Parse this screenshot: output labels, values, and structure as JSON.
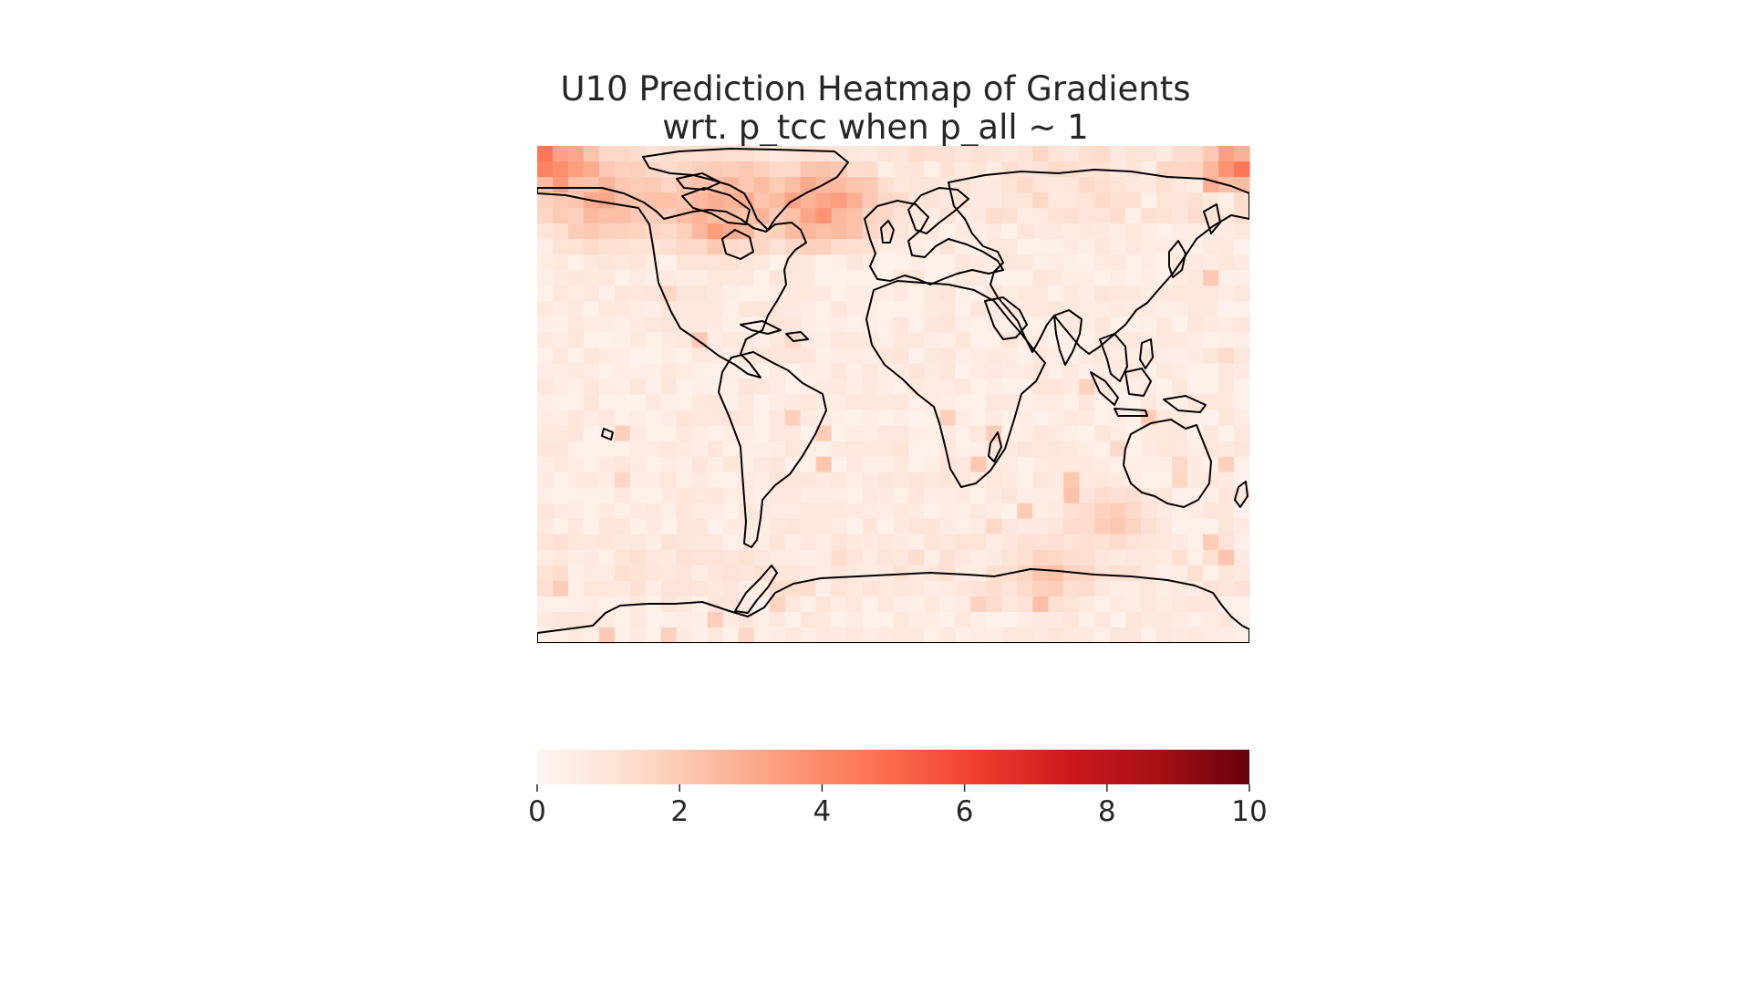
{
  "chart_data": {
    "type": "heatmap",
    "title": "U10 Prediction Heatmap of Gradients",
    "subtitle": "wrt. p_tcc when p_all ~ 1",
    "colormap": "Reds",
    "colormap_stops": [
      "#fff5f0",
      "#fee0d2",
      "#fcbba1",
      "#fc9272",
      "#fb6a4a",
      "#ef3b2c",
      "#cb181d",
      "#a50f15",
      "#67000d"
    ],
    "vmin": 0,
    "vmax": 10,
    "colorbar": {
      "ticks": [
        0,
        2,
        4,
        6,
        8,
        10
      ],
      "orientation": "horizontal",
      "placement": "bottom"
    },
    "grid": {
      "rows": 32,
      "cols": 46,
      "typical_value": 0.6,
      "max_value": 4.6
    },
    "hotspots": [
      {
        "region": "Arctic Pacific (western)",
        "value": 4.6
      },
      {
        "region": "Arctic Siberia (eastern)",
        "value": 4.4
      },
      {
        "region": "Hudson Bay / northern Canada",
        "value": 3.6
      },
      {
        "region": "Greenland south",
        "value": 3.3
      },
      {
        "region": "Alaska / Bering",
        "value": 3.0
      },
      {
        "region": "Southern Ocean",
        "value": 2.1
      },
      {
        "region": "Southern Indian Ocean",
        "value": 2.0
      }
    ],
    "overlay": "coastlines"
  }
}
